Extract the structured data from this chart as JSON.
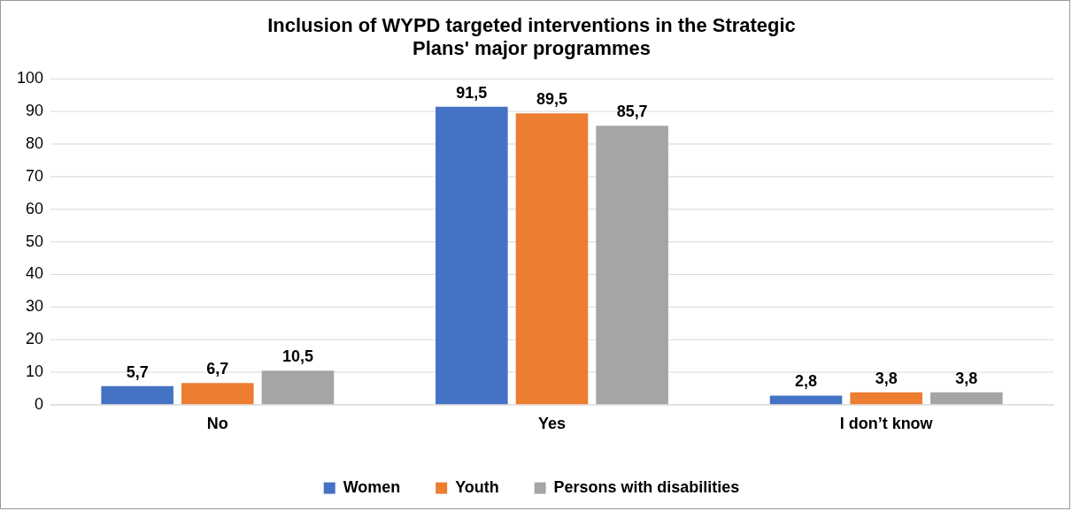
{
  "chart_data": {
    "type": "bar",
    "title": "Inclusion of WYPD targeted interventions in the Strategic Plans' major programmes",
    "categories": [
      "No",
      "Yes",
      "I don’t know"
    ],
    "series": [
      {
        "name": "Women",
        "color": "#4472c4",
        "values": [
          5.7,
          91.5,
          2.8
        ],
        "value_labels": [
          "5,7",
          "91,5",
          "2,8"
        ]
      },
      {
        "name": "Youth",
        "color": "#ed7d31",
        "values": [
          6.7,
          89.5,
          3.8
        ],
        "value_labels": [
          "6,7",
          "89,5",
          "3,8"
        ]
      },
      {
        "name": "Persons with disabilities",
        "color": "#a5a5a5",
        "values": [
          10.5,
          85.7,
          3.8
        ],
        "value_labels": [
          "10,5",
          "85,7",
          "3,8"
        ]
      }
    ],
    "ylim": [
      0,
      100
    ],
    "yticks": [
      0,
      10,
      20,
      30,
      40,
      50,
      60,
      70,
      80,
      90,
      100
    ],
    "grid": "y",
    "legend": "bottom"
  }
}
